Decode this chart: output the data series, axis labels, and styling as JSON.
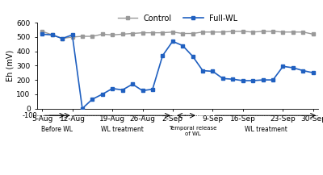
{
  "x_labels": [
    "5-Aug",
    "12-Aug",
    "19-Aug",
    "26-Aug",
    "2-Sep",
    "9-Sep",
    "16-Sep",
    "23-Sep",
    "30-Sep"
  ],
  "control_x": [
    0,
    1,
    2,
    3,
    4,
    5,
    6,
    7,
    8,
    9,
    10,
    11,
    12,
    13,
    14,
    15,
    16,
    17,
    18,
    19,
    20,
    21,
    22,
    23,
    24,
    25,
    26,
    27
  ],
  "control_y": [
    540,
    515,
    490,
    500,
    505,
    505,
    520,
    515,
    520,
    525,
    530,
    530,
    530,
    535,
    525,
    525,
    535,
    535,
    535,
    540,
    540,
    535,
    540,
    540,
    535,
    535,
    535,
    520
  ],
  "full_wl_x": [
    0,
    1,
    2,
    3,
    4,
    5,
    6,
    7,
    8,
    9,
    10,
    11,
    12,
    13,
    14,
    15,
    16,
    17,
    18,
    19,
    20,
    21,
    22,
    23,
    24,
    25,
    26,
    27
  ],
  "full_wl_y": [
    520,
    515,
    490,
    515,
    0,
    65,
    100,
    140,
    130,
    170,
    125,
    135,
    370,
    470,
    440,
    365,
    265,
    260,
    210,
    205,
    195,
    195,
    200,
    200,
    295,
    285,
    265,
    250
  ],
  "x_tick_positions": [
    0,
    3,
    7,
    10,
    13,
    17,
    20,
    24,
    27
  ],
  "ylim": [
    0,
    600
  ],
  "yticks": [
    0,
    100,
    200,
    300,
    400,
    500,
    600
  ],
  "control_color": "#999999",
  "full_wl_color": "#2060c0",
  "ylabel": "Eh (mV)",
  "legend_control": "Control",
  "legend_full_wl": "Full-WL"
}
